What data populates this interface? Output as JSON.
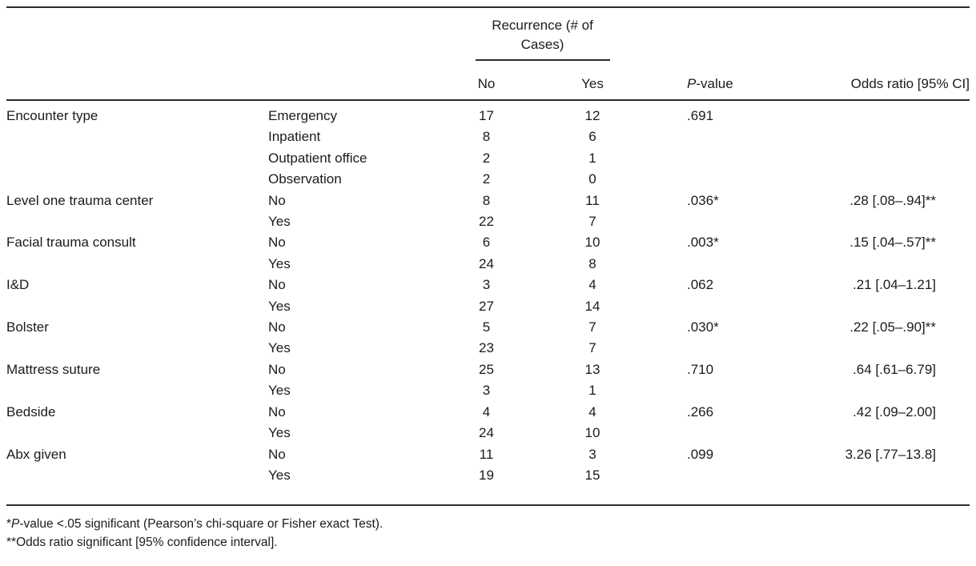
{
  "table": {
    "header": {
      "group_label": "Recurrence (# of Cases)",
      "no": "No",
      "yes": "Yes",
      "p_italic": "P",
      "p_rest": "-value",
      "odds": "Odds ratio [95% CI]"
    },
    "rows": [
      {
        "variable": "Encounter type",
        "level": "Emergency",
        "no": "17",
        "yes": "12",
        "p": ".691",
        "or": ""
      },
      {
        "variable": "",
        "level": "Inpatient",
        "no": "8",
        "yes": "6",
        "p": "",
        "or": ""
      },
      {
        "variable": "",
        "level": "Outpatient office",
        "no": "2",
        "yes": "1",
        "p": "",
        "or": ""
      },
      {
        "variable": "",
        "level": "Observation",
        "no": "2",
        "yes": "0",
        "p": "",
        "or": ""
      },
      {
        "variable": "Level one trauma center",
        "level": "No",
        "no": "8",
        "yes": "11",
        "p": ".036*",
        "or": ".28 [.08–.94]**"
      },
      {
        "variable": "",
        "level": "Yes",
        "no": "22",
        "yes": "7",
        "p": "",
        "or": ""
      },
      {
        "variable": "Facial trauma consult",
        "level": "No",
        "no": "6",
        "yes": "10",
        "p": ".003*",
        "or": ".15 [.04–.57]**"
      },
      {
        "variable": "",
        "level": "Yes",
        "no": "24",
        "yes": "8",
        "p": "",
        "or": ""
      },
      {
        "variable": "I&D",
        "level": "No",
        "no": "3",
        "yes": "4",
        "p": ".062",
        "or": ".21 [.04–1.21]"
      },
      {
        "variable": "",
        "level": "Yes",
        "no": "27",
        "yes": "14",
        "p": "",
        "or": ""
      },
      {
        "variable": "Bolster",
        "level": "No",
        "no": "5",
        "yes": "7",
        "p": ".030*",
        "or": ".22 [.05–.90]**"
      },
      {
        "variable": "",
        "level": "Yes",
        "no": "23",
        "yes": "7",
        "p": "",
        "or": ""
      },
      {
        "variable": "Mattress suture",
        "level": "No",
        "no": "25",
        "yes": "13",
        "p": ".710",
        "or": ".64 [.61–6.79]"
      },
      {
        "variable": "",
        "level": "Yes",
        "no": "3",
        "yes": "1",
        "p": "",
        "or": ""
      },
      {
        "variable": "Bedside",
        "level": "No",
        "no": "4",
        "yes": "4",
        "p": ".266",
        "or": ".42 [.09–2.00]"
      },
      {
        "variable": "",
        "level": "Yes",
        "no": "24",
        "yes": "10",
        "p": "",
        "or": ""
      },
      {
        "variable": "Abx given",
        "level": "No",
        "no": "11",
        "yes": "3",
        "p": ".099",
        "or": "3.26 [.77–13.8]"
      },
      {
        "variable": "",
        "level": "Yes",
        "no": "19",
        "yes": "15",
        "p": "",
        "or": ""
      }
    ]
  },
  "footnotes": {
    "f1_star": "*",
    "f1_italic": "P",
    "f1_rest": "-value <.05 significant (Pearson’s chi-square or Fisher exact Test).",
    "f2": "**Odds ratio significant [95% confidence interval]."
  }
}
